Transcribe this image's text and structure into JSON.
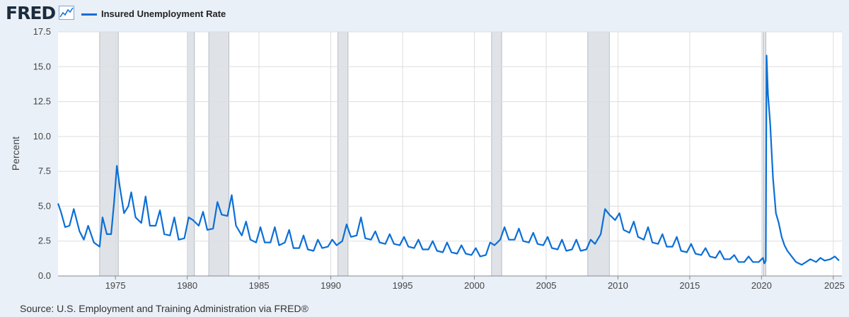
{
  "header": {
    "logo": "FRED",
    "logo_icon": "line-graph-icon"
  },
  "source": "Source: U.S. Employment and Training Administration via FRED®",
  "colors": {
    "series": "#0b6fd6",
    "recession": "#dfe3e8",
    "grid": "#dddddd",
    "background": "#eaf0f8",
    "plot": "#ffffff"
  },
  "chart_data": {
    "type": "line",
    "title": "",
    "xlabel": "",
    "ylabel": "Percent",
    "xlim": [
      1971.0,
      2025.6
    ],
    "ylim": [
      0,
      17.5
    ],
    "yticks": [
      0.0,
      2.5,
      5.0,
      7.5,
      10.0,
      12.5,
      15.0,
      17.5
    ],
    "ytick_labels": [
      "0.0",
      "2.5",
      "5.0",
      "7.5",
      "10.0",
      "12.5",
      "15.0",
      "17.5"
    ],
    "xticks": [
      1975,
      1980,
      1985,
      1990,
      1995,
      2000,
      2005,
      2010,
      2015,
      2020,
      2025
    ],
    "xtick_labels": [
      "1975",
      "1980",
      "1985",
      "1990",
      "1995",
      "2000",
      "2005",
      "2010",
      "2015",
      "2020",
      "2025"
    ],
    "grid": true,
    "legend": "top-left",
    "recessions": [
      [
        1973.9,
        1975.2
      ],
      [
        1980.0,
        1980.5
      ],
      [
        1981.5,
        1982.9
      ],
      [
        1990.5,
        1991.2
      ],
      [
        2001.2,
        2001.9
      ],
      [
        2007.9,
        2009.4
      ],
      [
        2020.1,
        2020.3
      ]
    ],
    "series": [
      {
        "name": "Insured Unemployment Rate",
        "x": [
          1971.0,
          1971.2,
          1971.5,
          1971.8,
          1972.1,
          1972.5,
          1972.8,
          1973.1,
          1973.5,
          1973.9,
          1974.1,
          1974.4,
          1974.7,
          1974.9,
          1975.1,
          1975.3,
          1975.6,
          1975.9,
          1976.1,
          1976.4,
          1976.8,
          1977.1,
          1977.4,
          1977.8,
          1978.1,
          1978.4,
          1978.8,
          1979.1,
          1979.4,
          1979.8,
          1980.1,
          1980.4,
          1980.8,
          1981.1,
          1981.4,
          1981.8,
          1982.1,
          1982.4,
          1982.8,
          1983.1,
          1983.4,
          1983.8,
          1984.1,
          1984.4,
          1984.8,
          1985.1,
          1985.4,
          1985.8,
          1986.1,
          1986.4,
          1986.8,
          1987.1,
          1987.4,
          1987.8,
          1988.1,
          1988.4,
          1988.8,
          1989.1,
          1989.4,
          1989.8,
          1990.1,
          1990.4,
          1990.8,
          1991.1,
          1991.4,
          1991.8,
          1992.1,
          1992.4,
          1992.8,
          1993.1,
          1993.4,
          1993.8,
          1994.1,
          1994.4,
          1994.8,
          1995.1,
          1995.4,
          1995.8,
          1996.1,
          1996.4,
          1996.8,
          1997.1,
          1997.4,
          1997.8,
          1998.1,
          1998.4,
          1998.8,
          1999.1,
          1999.4,
          1999.8,
          2000.1,
          2000.4,
          2000.8,
          2001.1,
          2001.4,
          2001.8,
          2002.1,
          2002.4,
          2002.8,
          2003.1,
          2003.4,
          2003.8,
          2004.1,
          2004.4,
          2004.8,
          2005.1,
          2005.4,
          2005.8,
          2006.1,
          2006.4,
          2006.8,
          2007.1,
          2007.4,
          2007.8,
          2008.1,
          2008.4,
          2008.8,
          2009.1,
          2009.4,
          2009.8,
          2010.1,
          2010.4,
          2010.8,
          2011.1,
          2011.4,
          2011.8,
          2012.1,
          2012.4,
          2012.8,
          2013.1,
          2013.4,
          2013.8,
          2014.1,
          2014.4,
          2014.8,
          2015.1,
          2015.4,
          2015.8,
          2016.1,
          2016.4,
          2016.8,
          2017.1,
          2017.4,
          2017.8,
          2018.1,
          2018.4,
          2018.8,
          2019.1,
          2019.4,
          2019.8,
          2020.1,
          2020.2,
          2020.3,
          2020.35,
          2020.45,
          2020.6,
          2020.8,
          2021.0,
          2021.2,
          2021.4,
          2021.6,
          2021.8,
          2022.1,
          2022.4,
          2022.8,
          2023.1,
          2023.4,
          2023.8,
          2024.1,
          2024.4,
          2024.8,
          2025.1,
          2025.4
        ],
        "y": [
          5.2,
          4.6,
          3.5,
          3.6,
          4.8,
          3.2,
          2.6,
          3.6,
          2.4,
          2.1,
          4.2,
          3.0,
          3.0,
          5.2,
          7.9,
          6.4,
          4.5,
          5.0,
          6.0,
          4.2,
          3.8,
          5.7,
          3.6,
          3.6,
          4.7,
          3.0,
          2.9,
          4.2,
          2.6,
          2.7,
          4.2,
          4.0,
          3.6,
          4.6,
          3.3,
          3.4,
          5.3,
          4.4,
          4.3,
          5.8,
          3.6,
          2.9,
          3.9,
          2.6,
          2.4,
          3.5,
          2.4,
          2.4,
          3.5,
          2.2,
          2.4,
          3.3,
          2.0,
          2.0,
          2.9,
          1.9,
          1.8,
          2.6,
          2.0,
          2.1,
          2.6,
          2.2,
          2.5,
          3.7,
          2.8,
          2.9,
          4.2,
          2.7,
          2.6,
          3.2,
          2.4,
          2.3,
          3.0,
          2.3,
          2.2,
          2.8,
          2.1,
          2.0,
          2.6,
          1.9,
          1.9,
          2.5,
          1.8,
          1.7,
          2.4,
          1.7,
          1.6,
          2.2,
          1.6,
          1.5,
          2.0,
          1.4,
          1.5,
          2.4,
          2.2,
          2.6,
          3.5,
          2.6,
          2.6,
          3.4,
          2.5,
          2.4,
          3.1,
          2.3,
          2.2,
          2.8,
          2.0,
          1.9,
          2.6,
          1.8,
          1.9,
          2.6,
          1.8,
          1.9,
          2.6,
          2.3,
          3.0,
          4.8,
          4.4,
          4.0,
          4.5,
          3.3,
          3.1,
          3.9,
          2.8,
          2.6,
          3.5,
          2.4,
          2.3,
          3.0,
          2.1,
          2.1,
          2.8,
          1.8,
          1.7,
          2.3,
          1.6,
          1.5,
          2.0,
          1.4,
          1.3,
          1.8,
          1.2,
          1.2,
          1.5,
          1.0,
          1.0,
          1.4,
          1.0,
          1.0,
          1.3,
          0.9,
          1.1,
          15.8,
          13.0,
          11.0,
          7.0,
          4.5,
          3.8,
          2.8,
          2.2,
          1.8,
          1.4,
          1.0,
          0.8,
          1.0,
          1.2,
          1.0,
          1.3,
          1.1,
          1.2,
          1.4,
          1.1
        ]
      }
    ]
  }
}
